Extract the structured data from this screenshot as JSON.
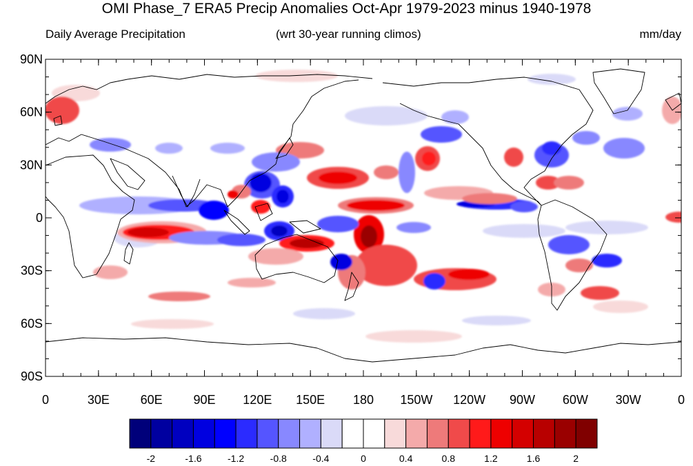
{
  "title": "OMI Phase_7 ERA5 Precip Anomalies Oct-Apr 1979-2023 minus 1940-1978",
  "subtitle_left": "Daily Average Precipitation",
  "subtitle_center": "(wrt 30-year running climos)",
  "subtitle_right": "mm/day",
  "lat_labels": [
    "90N",
    "60N",
    "30N",
    "0",
    "30S",
    "60S",
    "90S"
  ],
  "lon_labels": [
    "0",
    "30E",
    "60E",
    "90E",
    "120E",
    "150E",
    "180",
    "150W",
    "120W",
    "90W",
    "60W",
    "30W",
    "0"
  ],
  "colorbar": {
    "colors": [
      "#00007a",
      "#0000a0",
      "#0000c0",
      "#0000e0",
      "#0000ff",
      "#2b2bff",
      "#5555ff",
      "#8888ff",
      "#b0b0ff",
      "#dadaf8",
      "#ffffff",
      "#ffffff",
      "#f8dada",
      "#f4aaaa",
      "#ee7a7a",
      "#f04a4a",
      "#ff1a1a",
      "#ee0000",
      "#d40000",
      "#b80000",
      "#9a0000",
      "#800000"
    ],
    "tick_labels": [
      "-2",
      "-1.6",
      "-1.2",
      "-0.8",
      "-0.4",
      "0",
      "0.4",
      "0.8",
      "1.2",
      "1.6",
      "2"
    ],
    "range": [
      -2.2,
      2.2
    ],
    "step": 0.2
  }
}
